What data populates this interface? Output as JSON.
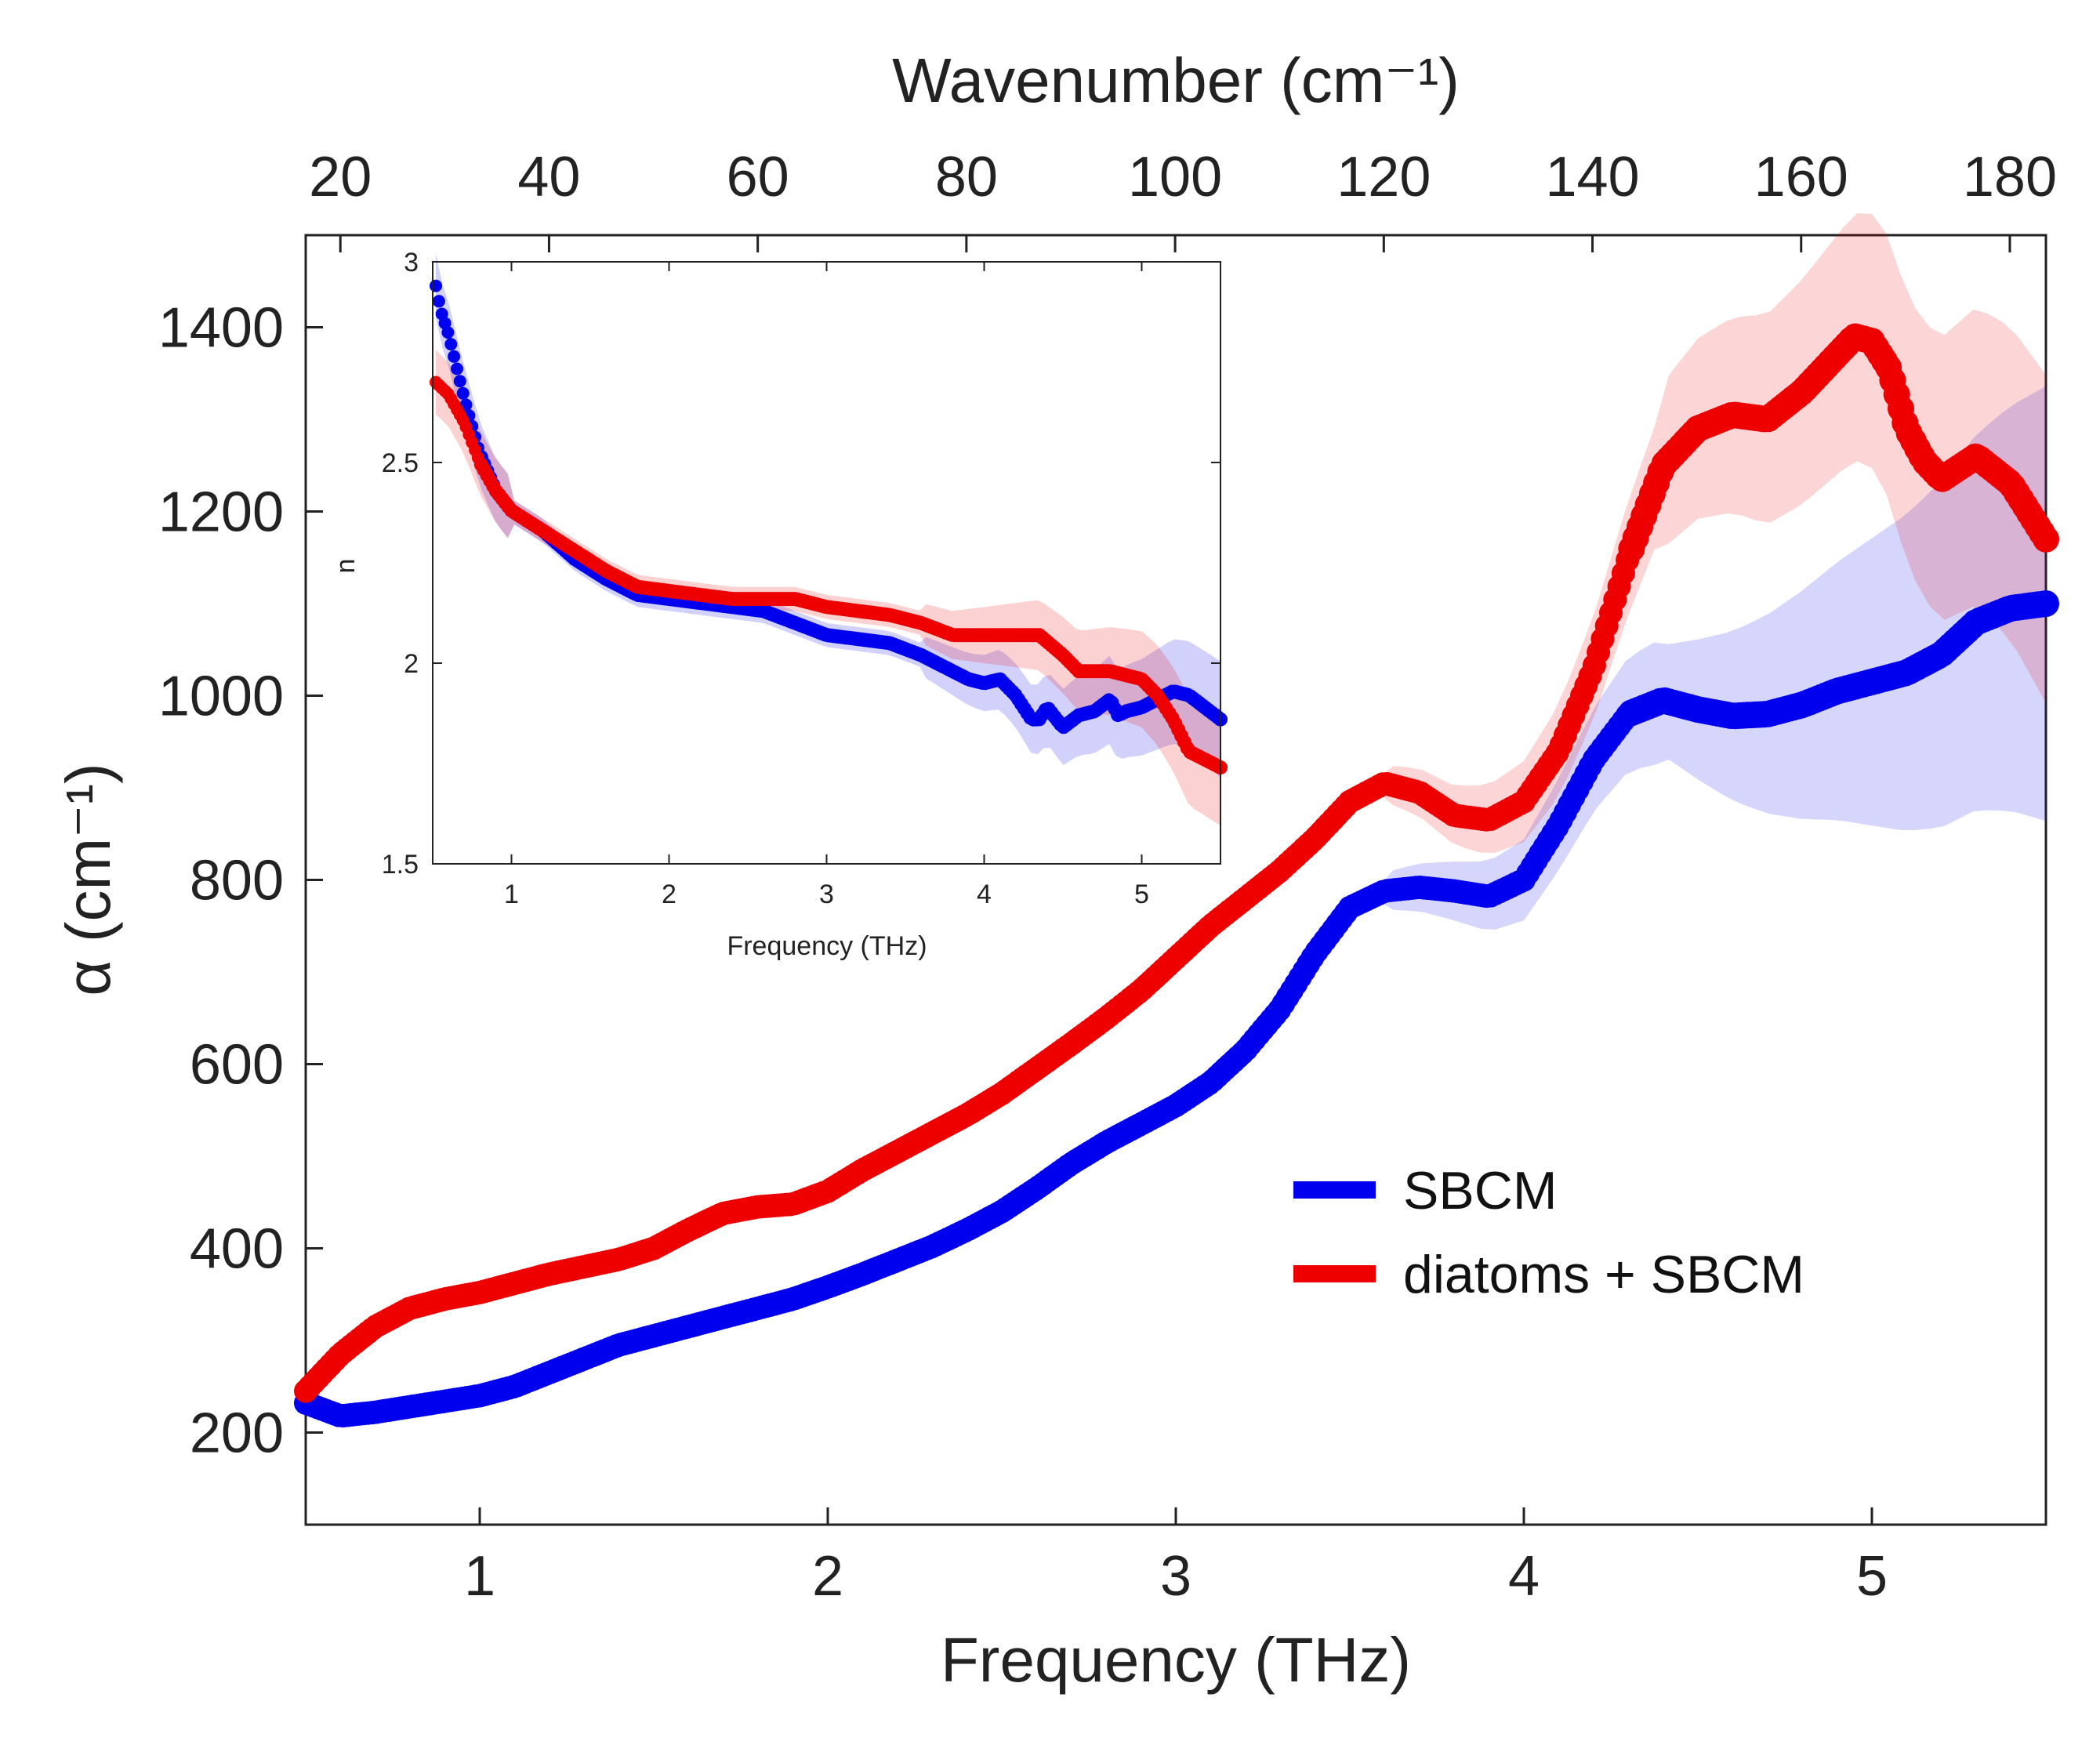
{
  "chart_data": [
    {
      "type": "scatter",
      "name": "absorption",
      "title": "",
      "xlabel": "Frequency (THz)",
      "ylabel": "α (cm⁻¹)",
      "top_axis_label": "Wavenumber (cm⁻¹)",
      "xlim": [
        0.5,
        5.5
      ],
      "ylim": [
        100,
        1500
      ],
      "xticks": [
        1,
        2,
        3,
        4,
        5
      ],
      "xtick_labels": [
        "1",
        "2",
        "3",
        "4",
        "5"
      ],
      "yticks": [
        200,
        400,
        600,
        800,
        1000,
        1200,
        1400
      ],
      "ytick_labels": [
        "200",
        "400",
        "600",
        "800",
        "1000",
        "1200",
        "1400"
      ],
      "top_ticks": [
        20,
        40,
        60,
        80,
        100,
        120,
        140,
        160,
        180
      ],
      "top_tick_labels": [
        "20",
        "40",
        "60",
        "80",
        "100",
        "120",
        "140",
        "160",
        "180"
      ],
      "series": [
        {
          "name": "SBCM",
          "color": "#0000ee",
          "x": [
            0.5,
            0.6,
            0.7,
            0.8,
            0.9,
            1.0,
            1.1,
            1.2,
            1.3,
            1.4,
            1.5,
            1.6,
            1.7,
            1.8,
            1.9,
            2.0,
            2.1,
            2.2,
            2.3,
            2.4,
            2.5,
            2.6,
            2.7,
            2.8,
            2.9,
            3.0,
            3.1,
            3.2,
            3.3,
            3.4,
            3.5,
            3.6,
            3.7,
            3.8,
            3.9,
            4.0,
            4.1,
            4.2,
            4.3,
            4.4,
            4.5,
            4.6,
            4.7,
            4.8,
            4.9,
            5.0,
            5.1,
            5.2,
            5.3,
            5.4,
            5.5
          ],
          "y": [
            232,
            218,
            222,
            228,
            234,
            240,
            250,
            265,
            280,
            295,
            305,
            315,
            325,
            335,
            345,
            358,
            372,
            387,
            402,
            420,
            440,
            465,
            492,
            515,
            535,
            555,
            580,
            615,
            660,
            720,
            770,
            788,
            792,
            788,
            782,
            800,
            860,
            930,
            980,
            995,
            985,
            978,
            980,
            990,
            1005,
            1015,
            1025,
            1045,
            1080,
            1095,
            1100
          ]
        },
        {
          "name": "diatoms + SBCM",
          "color": "#ee0000",
          "x": [
            0.5,
            0.6,
            0.7,
            0.8,
            0.9,
            1.0,
            1.1,
            1.2,
            1.3,
            1.4,
            1.5,
            1.6,
            1.7,
            1.8,
            1.9,
            2.0,
            2.1,
            2.2,
            2.3,
            2.4,
            2.5,
            2.6,
            2.7,
            2.8,
            2.9,
            3.0,
            3.1,
            3.2,
            3.3,
            3.4,
            3.5,
            3.6,
            3.7,
            3.8,
            3.9,
            4.0,
            4.1,
            4.2,
            4.3,
            4.4,
            4.5,
            4.6,
            4.7,
            4.8,
            4.9,
            4.95,
            5.0,
            5.05,
            5.1,
            5.15,
            5.2,
            5.3,
            5.4,
            5.5
          ],
          "y": [
            245,
            285,
            315,
            335,
            345,
            352,
            362,
            372,
            380,
            388,
            400,
            420,
            438,
            445,
            448,
            462,
            485,
            505,
            525,
            545,
            568,
            595,
            622,
            650,
            680,
            715,
            750,
            780,
            810,
            845,
            885,
            905,
            895,
            870,
            865,
            885,
            940,
            1030,
            1150,
            1250,
            1290,
            1305,
            1300,
            1330,
            1370,
            1390,
            1385,
            1355,
            1290,
            1255,
            1235,
            1260,
            1230,
            1170
          ]
        }
      ],
      "legend": [
        "SBCM",
        "diatoms + SBCM"
      ],
      "legend_position": "lower-right"
    },
    {
      "type": "scatter",
      "name": "refractive-index-inset",
      "xlabel": "Frequency (THz)",
      "ylabel": "n",
      "xlim": [
        0.5,
        5.5
      ],
      "ylim": [
        1.5,
        3.0
      ],
      "xticks": [
        1,
        2,
        3,
        4,
        5
      ],
      "xtick_labels": [
        "1",
        "2",
        "3",
        "4",
        "5"
      ],
      "yticks": [
        1.5,
        2,
        2.5,
        3
      ],
      "ytick_labels": [
        "1.5",
        "2",
        "2.5",
        "3"
      ],
      "series": [
        {
          "name": "SBCM",
          "color": "#0000ee",
          "x": [
            0.52,
            0.55,
            0.6,
            0.65,
            0.7,
            0.8,
            0.9,
            1.0,
            1.2,
            1.4,
            1.6,
            1.8,
            2.0,
            2.2,
            2.4,
            2.6,
            2.8,
            3.0,
            3.2,
            3.4,
            3.6,
            3.8,
            3.9,
            4.0,
            4.1,
            4.2,
            4.3,
            4.35,
            4.4,
            4.5,
            4.6,
            4.7,
            4.8,
            4.85,
            4.9,
            5.0,
            5.1,
            5.2,
            5.3,
            5.4,
            5.5
          ],
          "y": [
            2.94,
            2.88,
            2.82,
            2.74,
            2.66,
            2.52,
            2.43,
            2.38,
            2.33,
            2.26,
            2.21,
            2.17,
            2.16,
            2.15,
            2.14,
            2.13,
            2.1,
            2.07,
            2.06,
            2.05,
            2.02,
            1.98,
            1.96,
            1.95,
            1.96,
            1.92,
            1.86,
            1.86,
            1.89,
            1.84,
            1.87,
            1.88,
            1.91,
            1.87,
            1.88,
            1.89,
            1.91,
            1.93,
            1.92,
            1.89,
            1.86
          ]
        },
        {
          "name": "diatoms + SBCM",
          "color": "#ee0000",
          "x": [
            0.52,
            0.6,
            0.7,
            0.8,
            0.9,
            1.0,
            1.2,
            1.4,
            1.6,
            1.8,
            2.0,
            2.2,
            2.4,
            2.6,
            2.8,
            3.0,
            3.2,
            3.4,
            3.6,
            3.8,
            4.0,
            4.2,
            4.35,
            4.5,
            4.6,
            4.8,
            5.0,
            5.1,
            5.2,
            5.3,
            5.4,
            5.5
          ],
          "y": [
            2.7,
            2.67,
            2.6,
            2.5,
            2.43,
            2.38,
            2.33,
            2.28,
            2.23,
            2.19,
            2.18,
            2.17,
            2.16,
            2.16,
            2.16,
            2.14,
            2.13,
            2.12,
            2.1,
            2.07,
            2.07,
            2.07,
            2.07,
            2.02,
            1.98,
            1.98,
            1.96,
            1.92,
            1.86,
            1.78,
            1.76,
            1.74
          ]
        }
      ]
    }
  ]
}
